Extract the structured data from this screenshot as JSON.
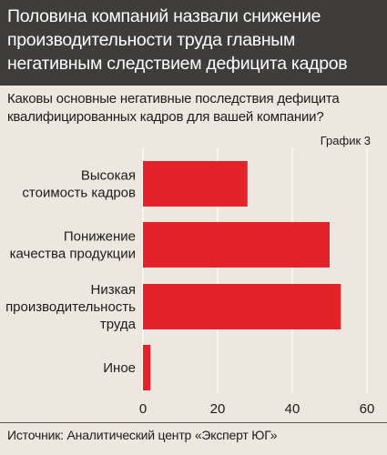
{
  "header": {
    "title": "Половина компаний назвали снижение производительности труда  главным негативным следствием дефицита кадров"
  },
  "question": "Каковы основные негативные последствия дефицита квалифицированных кадров для вашей компании?",
  "chart_number": "График 3",
  "source": "Источник: Аналитический центр «Эксперт ЮГ»",
  "colors": {
    "header_bg": "#3e3d3b",
    "background": "#ede7df",
    "bar": "#e3222a",
    "grid": "#ffffff"
  },
  "chart_data": {
    "type": "bar",
    "orientation": "horizontal",
    "title": "",
    "xlabel": "",
    "ylabel": "",
    "categories": [
      [
        "Высокая",
        "стоимость кадров"
      ],
      [
        "Понижение",
        "качества продукции"
      ],
      [
        "Низкая",
        "производительность",
        "труда"
      ],
      [
        "Иное"
      ]
    ],
    "values": [
      28,
      50,
      53,
      2
    ],
    "xlim": [
      0,
      60
    ],
    "ticks": [
      0,
      20,
      40,
      60
    ],
    "grid": true
  }
}
